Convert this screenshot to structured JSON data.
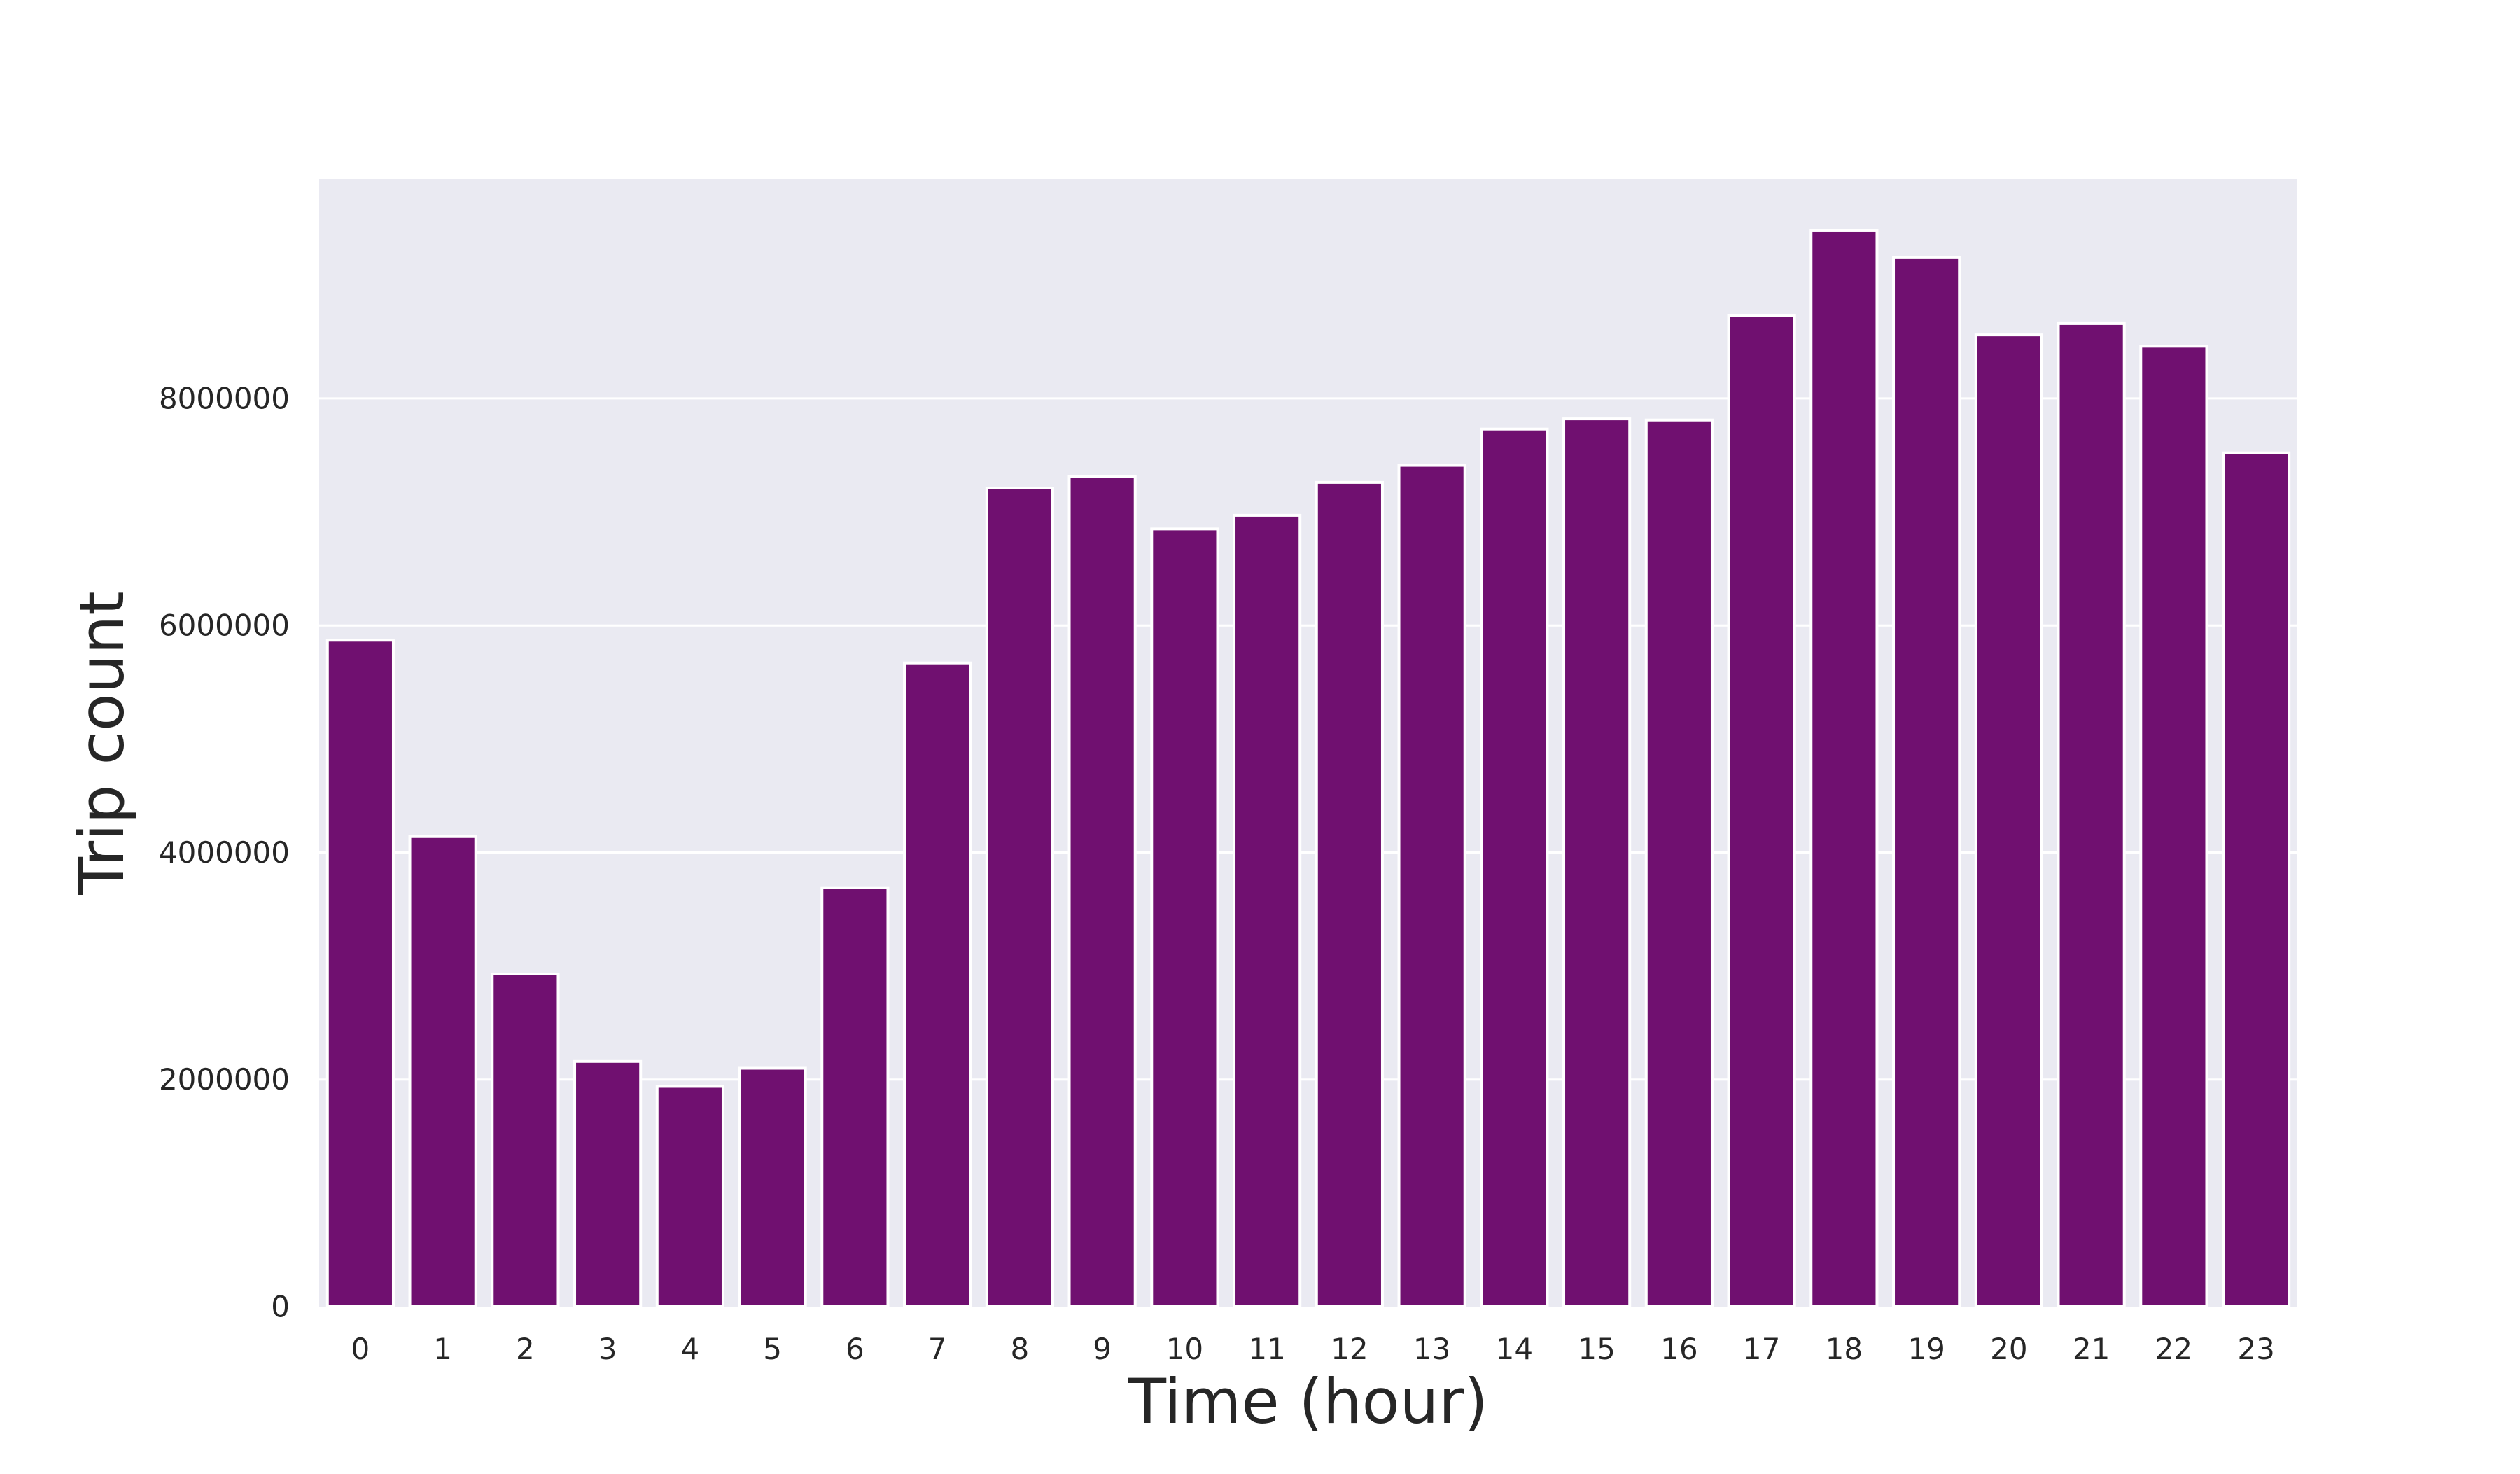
{
  "chart_data": {
    "type": "bar",
    "title": "",
    "xlabel": "Time (hour)",
    "ylabel": "Trip count",
    "categories": [
      "0",
      "1",
      "2",
      "3",
      "4",
      "5",
      "6",
      "7",
      "8",
      "9",
      "10",
      "11",
      "12",
      "13",
      "14",
      "15",
      "16",
      "17",
      "18",
      "19",
      "20",
      "21",
      "22",
      "23"
    ],
    "values": [
      5870000,
      4140000,
      2930000,
      2160000,
      1940000,
      2100000,
      3690000,
      5670000,
      7210000,
      7310000,
      6850000,
      6970000,
      7260000,
      7410000,
      7730000,
      7820000,
      7810000,
      8730000,
      9480000,
      9240000,
      8560000,
      8660000,
      8460000,
      7520000
    ],
    "yticks": [
      "0",
      "2000000",
      "4000000",
      "6000000",
      "8000000"
    ],
    "ylim": [
      0,
      9930000
    ],
    "grid": true,
    "colors": {
      "bar": "#701070",
      "plot_background": "#eaeaf2",
      "grid": "#ffffff"
    }
  }
}
